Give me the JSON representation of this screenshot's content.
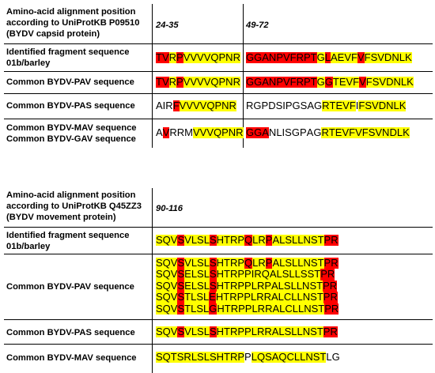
{
  "colors": {
    "highlight_yellow": "#ffff00",
    "highlight_red": "#ff0000"
  },
  "table1": {
    "header_label": [
      "Amino-acid  alignment position",
      "according to UniProtKB P09510",
      "(BYDV capsid protein)"
    ],
    "position_a": "24-35",
    "position_b": "49-72",
    "rows": [
      {
        "label": [
          "Identified fragment sequence",
          "01b/barley"
        ],
        "seq_a": "TVRPVVVVQPNR",
        "mask_a": "rryryyyyyyyy",
        "seq_b": "GGANPVFRPTGLAEVFVFSVDNLK",
        "mask_b": "rrrrrrrrrryryyyyryyyyyyy"
      },
      {
        "label": [
          "Common BYDV-PAV sequence"
        ],
        "seq_a": "TVRPVVVVQPNR",
        "mask_a": "rryryyyyyyyy",
        "seq_b": "GGANPVFRPTGGTEVFVFSVDNLK",
        "mask_b": "rrrrrrrrrryryyyyryyyyyyy"
      },
      {
        "label": [
          "Common BYDV-PAS sequence"
        ],
        "seq_a": "AIRFVVVVQPNR",
        "mask_a": "...ryyyyyyyy",
        "seq_b": "RGPDSIPGSAGRTEVFIFSVDNLK",
        "mask_b": "...........yyyyy.yyyyyyy"
      },
      {
        "label": [
          "Common BYDV-MAV sequence",
          "Common BYDV-GAV sequence"
        ],
        "seq_a": "AVRRMVVVQPNR",
        "mask_a": ".r...yyyyyyy",
        "seq_b": "GGANLISGPAGRTEVFVFSVNDLK",
        "mask_b": "rrr........yyyyyyyyyyyyy"
      }
    ]
  },
  "table2": {
    "header_label": [
      "Amino-acid  alignment position",
      "according to UniProtKB Q45ZZ3",
      "(BYDV movement protein)"
    ],
    "position": "90-116",
    "rows": [
      {
        "label": [
          "Identified fragment sequence",
          "01b/barley"
        ],
        "seqs": [
          {
            "seq": "SQVSVLSLSHTRPQLRPALSLLNSTPR",
            "mask": "yyyryyyyryyyyryyryyyyyyyyrr"
          }
        ]
      },
      {
        "label": [
          "Common BYDV-PAV sequence"
        ],
        "seqs": [
          {
            "seq": "SQVSVLSLSHTRPQLRPALSLLNSTPR",
            "mask": "yyyryyyyryyyyryyryyyyyyyyrr"
          },
          {
            "seq": "SQVSELSLSHTRPPIRQALSLLSSTPR",
            "mask": "yyyryyyyryyyyyyyyyyyyyyyyrr"
          },
          {
            "seq": "SQVSELSLSHTRPPLRPALSLLNSTPR",
            "mask": "yyyryyyyryyyyyyyyyyyyyyyyrr"
          },
          {
            "seq": "SQVSTLSLEHTRPPLRRALCLLNSTPR",
            "mask": "yyyryyyyryyyyyyyyyyyyyyyyrr"
          },
          {
            "seq": "SQVSTLSLGHTRPPLRRALCLLNSTPR",
            "mask": "yyyryyyyryyyyyyyyyyyyyyyyrr"
          }
        ]
      },
      {
        "label": [
          "Common BYDV-PAS sequence"
        ],
        "seqs": [
          {
            "seq": "SQVSVLSLSHTRPPLRRALSLLNSTPR",
            "mask": "yyyryyyyryyyyyyyyyyyyyyyyrr"
          }
        ]
      },
      {
        "label": [
          "Common BYDV-MAV sequence"
        ],
        "seqs": [
          {
            "seq": "SQTSRLSLSHTRPPLQSAQCLLNSTLG",
            "mask": "yyyyyyyyyyyyy.yyyyyyyyyyy.."
          }
        ]
      }
    ]
  }
}
